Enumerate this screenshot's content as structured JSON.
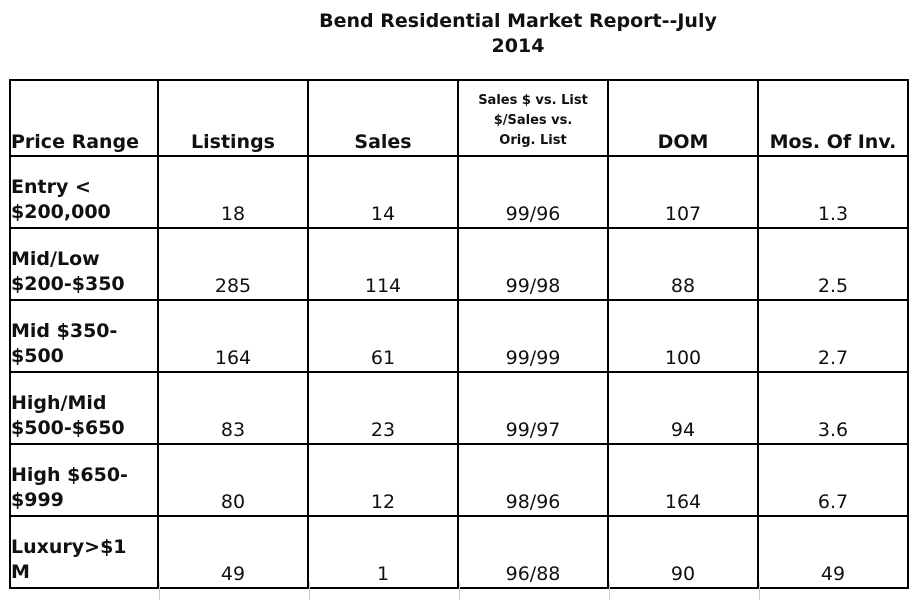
{
  "report": {
    "title_line1": "Bend Residential Market Report--July",
    "title_line2": "2014"
  },
  "headers": {
    "price_range": "Price Range",
    "listings": "Listings",
    "sales": "Sales",
    "ratio_line1": "Sales $ vs. List",
    "ratio_line2": "$/Sales vs.",
    "ratio_line3": "Orig. List",
    "dom": "DOM",
    "mos_inv": "Mos. Of Inv."
  },
  "rows": [
    {
      "range_line1": "Entry <",
      "range_line2": "$200,000",
      "listings": "18",
      "sales": "14",
      "ratio": "99/96",
      "dom": "107",
      "mos": "1.3"
    },
    {
      "range_line1": "Mid/Low",
      "range_line2": "$200-$350",
      "listings": "285",
      "sales": "114",
      "ratio": "99/98",
      "dom": "88",
      "mos": "2.5"
    },
    {
      "range_line1": "Mid $350-",
      "range_line2": "$500",
      "listings": "164",
      "sales": "61",
      "ratio": "99/99",
      "dom": "100",
      "mos": "2.7"
    },
    {
      "range_line1": "High/Mid",
      "range_line2": "$500-$650",
      "listings": "83",
      "sales": "23",
      "ratio": "99/97",
      "dom": "94",
      "mos": "3.6"
    },
    {
      "range_line1": "High $650-",
      "range_line2": "$999",
      "listings": "80",
      "sales": "12",
      "ratio": "98/96",
      "dom": "164",
      "mos": "6.7"
    },
    {
      "range_line1": "Luxury>$1",
      "range_line2": "M",
      "listings": "49",
      "sales": "1",
      "ratio": "96/88",
      "dom": "90",
      "mos": "49"
    }
  ]
}
